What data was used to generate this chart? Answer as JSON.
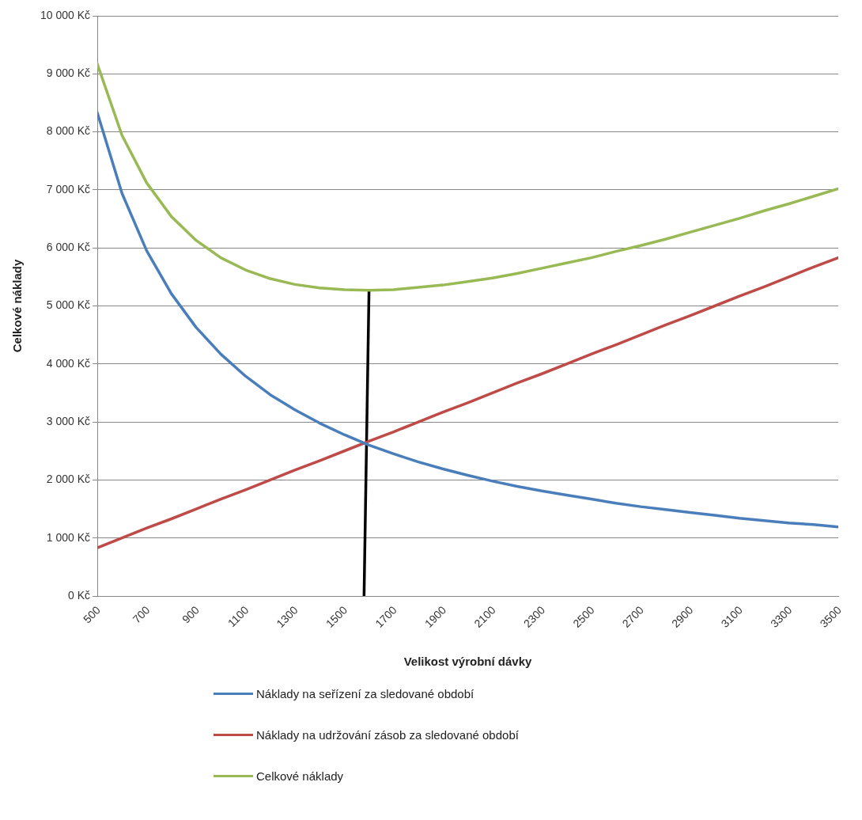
{
  "chart_data": {
    "type": "line",
    "xlabel": "Velikost výrobní dávky",
    "ylabel": "Celkové náklady",
    "x": [
      500,
      600,
      700,
      800,
      900,
      1000,
      1100,
      1200,
      1300,
      1400,
      1500,
      1600,
      1700,
      1800,
      1900,
      2000,
      2100,
      2200,
      2300,
      2400,
      2500,
      2600,
      2700,
      2800,
      2900,
      3000,
      3100,
      3200,
      3300,
      3400,
      3500
    ],
    "series": [
      {
        "name": "Náklady na seřízení za sledované období",
        "color": "#4a7ebb",
        "values": [
          8330,
          6940,
          5950,
          5210,
          4630,
          4170,
          3790,
          3470,
          3210,
          2980,
          2780,
          2600,
          2450,
          2310,
          2190,
          2080,
          1980,
          1890,
          1810,
          1740,
          1670,
          1600,
          1540,
          1490,
          1440,
          1390,
          1340,
          1300,
          1260,
          1230,
          1190
        ]
      },
      {
        "name": "Náklady na udržování zásob za sledované období",
        "color": "#be4b48",
        "values": [
          830,
          1000,
          1170,
          1330,
          1500,
          1670,
          1830,
          2000,
          2170,
          2330,
          2500,
          2670,
          2830,
          3000,
          3170,
          3330,
          3500,
          3670,
          3830,
          4000,
          4170,
          4330,
          4500,
          4670,
          4830,
          5000,
          5170,
          5330,
          5500,
          5670,
          5830
        ]
      },
      {
        "name": "Celkové náklady",
        "color": "#98b954",
        "values": [
          9170,
          7940,
          7120,
          6540,
          6130,
          5830,
          5620,
          5470,
          5370,
          5310,
          5280,
          5270,
          5280,
          5320,
          5360,
          5420,
          5480,
          5560,
          5650,
          5740,
          5830,
          5940,
          6040,
          6150,
          6270,
          6390,
          6510,
          6640,
          6760,
          6890,
          7020
        ]
      },
      {
        "type": "line",
        "color": "#000000",
        "x": [
          1580,
          1600
        ],
        "values": [
          0,
          5250
        ]
      }
    ],
    "xlim": [
      500,
      3500
    ],
    "xticks": [
      500,
      700,
      900,
      1100,
      1300,
      1500,
      1700,
      1900,
      2100,
      2300,
      2500,
      2700,
      2900,
      3100,
      3300,
      3500
    ],
    "ylim": [
      0,
      10000
    ],
    "yticks": [
      {
        "value": 0,
        "label": "0 Kč"
      },
      {
        "value": 1000,
        "label": "1 000 Kč"
      },
      {
        "value": 2000,
        "label": "2 000 Kč"
      },
      {
        "value": 3000,
        "label": "3 000 Kč"
      },
      {
        "value": 4000,
        "label": "4 000 Kč"
      },
      {
        "value": 5000,
        "label": "5 000 Kč"
      },
      {
        "value": 6000,
        "label": "6 000 Kč"
      },
      {
        "value": 7000,
        "label": "7 000 Kč"
      },
      {
        "value": 8000,
        "label": "8 000 Kč"
      },
      {
        "value": 9000,
        "label": "9 000 Kč"
      },
      {
        "value": 10000,
        "label": "10 000 Kč"
      }
    ],
    "grid": "y",
    "legend": "bottom",
    "marker": "none",
    "line_style": "solid"
  }
}
